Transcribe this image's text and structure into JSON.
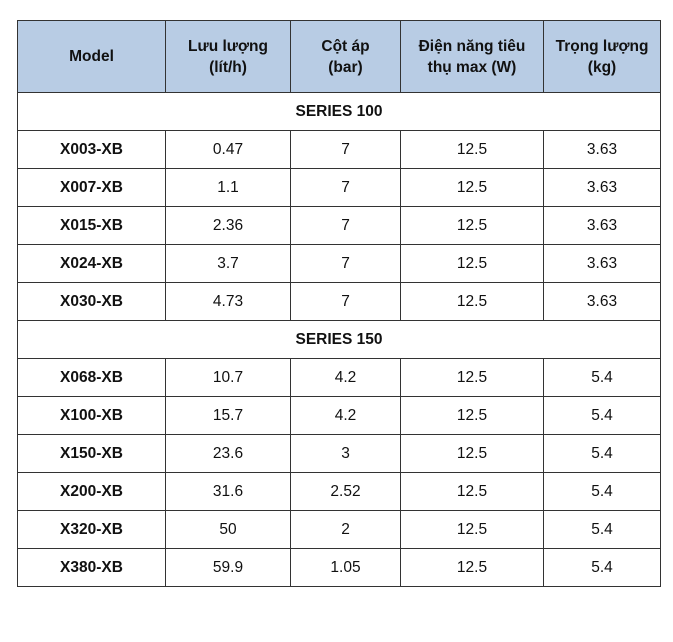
{
  "table": {
    "header": [
      [
        "Model"
      ],
      [
        "Lưu lượng",
        "(lít/h)"
      ],
      [
        "Cột áp",
        "(bar)"
      ],
      [
        "Điện năng tiêu",
        "thụ max (W)"
      ],
      [
        "Trọng lượng",
        "(kg)"
      ]
    ],
    "sections": [
      {
        "title": "SERIES 100",
        "rows": [
          [
            "X003-XB",
            "0.47",
            "7",
            "12.5",
            "3.63"
          ],
          [
            "X007-XB",
            "1.1",
            "7",
            "12.5",
            "3.63"
          ],
          [
            "X015-XB",
            "2.36",
            "7",
            "12.5",
            "3.63"
          ],
          [
            "X024-XB",
            "3.7",
            "7",
            "12.5",
            "3.63"
          ],
          [
            "X030-XB",
            "4.73",
            "7",
            "12.5",
            "3.63"
          ]
        ]
      },
      {
        "title": "SERIES 150",
        "rows": [
          [
            "X068-XB",
            "10.7",
            "4.2",
            "12.5",
            "5.4"
          ],
          [
            "X100-XB",
            "15.7",
            "4.2",
            "12.5",
            "5.4"
          ],
          [
            "X150-XB",
            "23.6",
            "3",
            "12.5",
            "5.4"
          ],
          [
            "X200-XB",
            "31.6",
            "2.52",
            "12.5",
            "5.4"
          ],
          [
            "X320-XB",
            "50",
            "2",
            "12.5",
            "5.4"
          ],
          [
            "X380-XB",
            "59.9",
            "1.05",
            "12.5",
            "5.4"
          ]
        ]
      }
    ]
  }
}
